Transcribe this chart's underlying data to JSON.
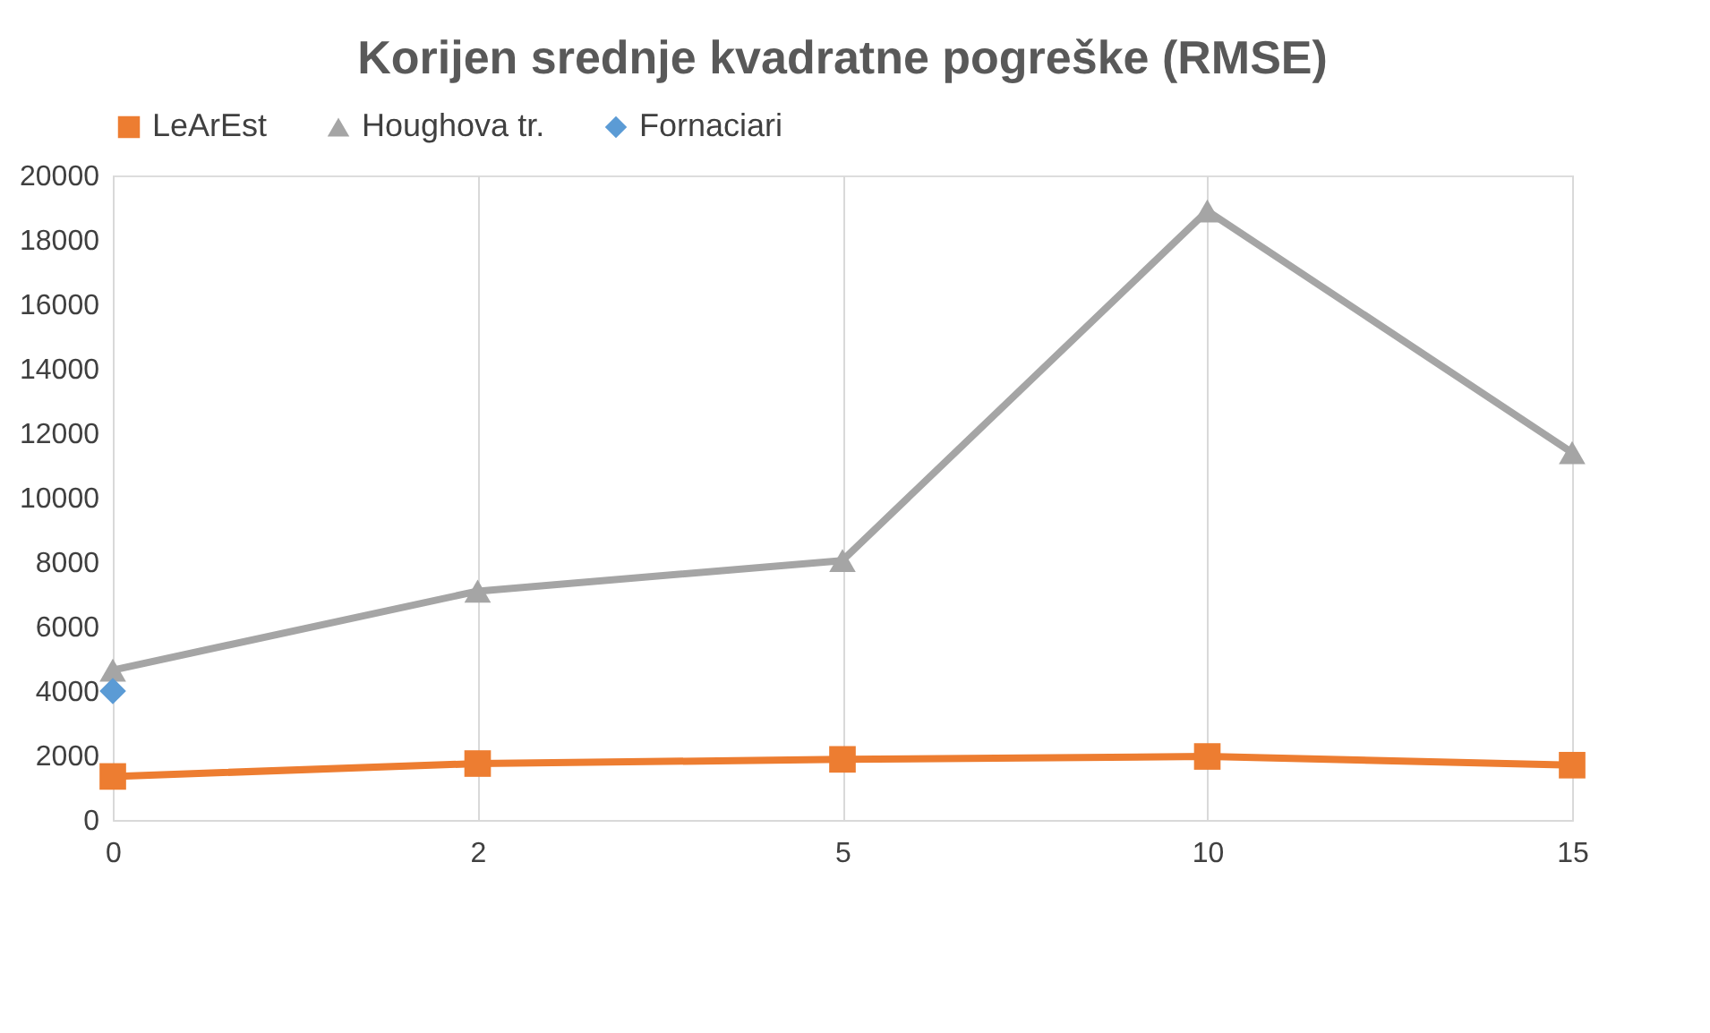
{
  "chart_data": {
    "type": "line",
    "title": "Korijen srednje kvadratne pogreške (RMSE)",
    "categories": [
      "0",
      "2",
      "5",
      "10",
      "15"
    ],
    "series": [
      {
        "name": "LeArEst",
        "color": "#ed7d31",
        "marker": "square",
        "values": [
          1350,
          1750,
          1880,
          1970,
          1700
        ]
      },
      {
        "name": "Houghova tr.",
        "color": "#a5a5a5",
        "marker": "triangle",
        "values": [
          4650,
          7100,
          8050,
          18900,
          11400
        ]
      },
      {
        "name": "Fornaciari",
        "color": "#5b9bd5",
        "marker": "diamond",
        "values": [
          4000,
          null,
          null,
          null,
          null
        ]
      }
    ],
    "ylim": [
      0,
      20000
    ],
    "yticks": [
      0,
      2000,
      4000,
      6000,
      8000,
      10000,
      12000,
      14000,
      16000,
      18000,
      20000
    ],
    "grid": "x",
    "legend": "top"
  }
}
